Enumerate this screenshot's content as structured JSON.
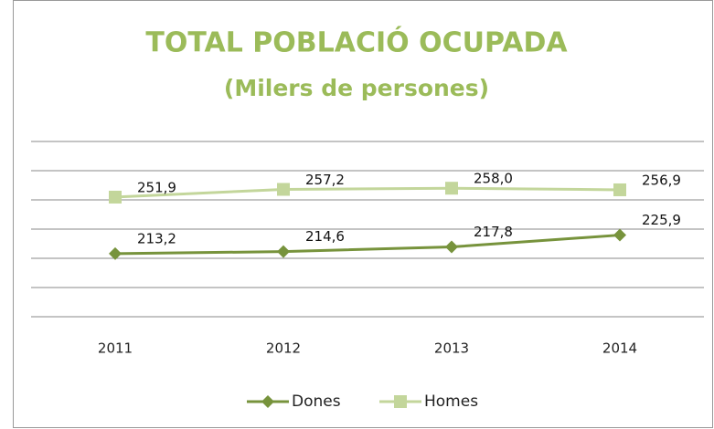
{
  "chart_data": {
    "type": "line",
    "title": "TOTAL POBLACIÓ OCUPADA",
    "subtitle": "(Milers de persones)",
    "categories": [
      "2011",
      "2012",
      "2013",
      "2014"
    ],
    "series": [
      {
        "name": "Dones",
        "color": "#77933c",
        "marker": "diamond",
        "values": [
          213.2,
          214.6,
          217.8,
          225.9
        ],
        "value_labels": [
          "213,2",
          "214,6",
          "217,8",
          "225,9"
        ]
      },
      {
        "name": "Homes",
        "color": "#c3d69b",
        "marker": "square",
        "values": [
          251.9,
          257.2,
          258.0,
          256.9
        ],
        "value_labels": [
          "251,9",
          "257,2",
          "258,0",
          "256,9"
        ]
      }
    ],
    "ylim": [
      170,
      290
    ],
    "yticks": [
      170,
      190,
      210,
      230,
      250,
      270,
      290
    ],
    "grid": true,
    "legend": "bottom",
    "title_color": "#9bbb59"
  }
}
